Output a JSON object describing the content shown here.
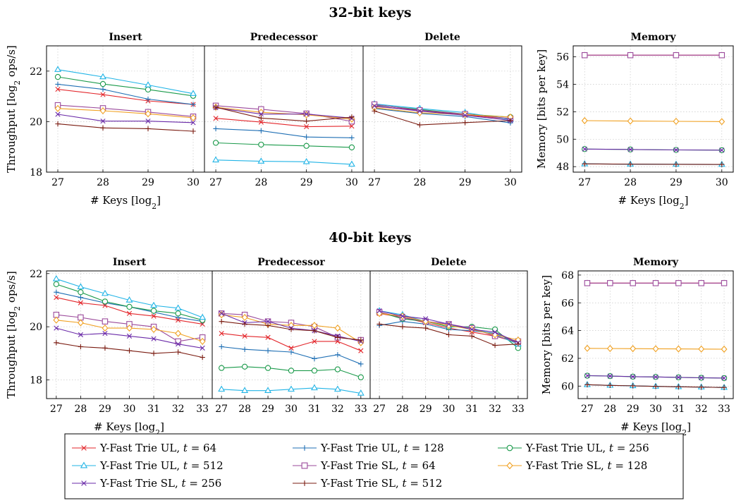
{
  "figure": {
    "sections": [
      {
        "title": "32-bit keys"
      },
      {
        "title": "40-bit keys"
      }
    ],
    "legend": {
      "items": [
        {
          "label": "Y-Fast Trie UL, t = 64",
          "color": "#e3262b",
          "marker": "x"
        },
        {
          "label": "Y-Fast Trie UL, t = 128",
          "color": "#1f6fb4",
          "marker": "plus"
        },
        {
          "label": "Y-Fast Trie UL, t = 256",
          "color": "#1a9a4a",
          "marker": "circle"
        },
        {
          "label": "Y-Fast Trie UL, t = 512",
          "color": "#21b4e6",
          "marker": "triangle"
        },
        {
          "label": "Y-Fast Trie SL, t = 64",
          "color": "#9b4a9b",
          "marker": "square"
        },
        {
          "label": "Y-Fast Trie SL, t = 128",
          "color": "#f0a020",
          "marker": "diamond"
        },
        {
          "label": "Y-Fast Trie SL, t = 256",
          "color": "#6a2aa8",
          "marker": "x"
        },
        {
          "label": "Y-Fast Trie SL, t = 512",
          "color": "#7a1b10",
          "marker": "plus"
        }
      ]
    }
  },
  "chart_data": [
    {
      "type": "line",
      "section": "32-bit keys",
      "title": "Insert",
      "xlabel": "# Keys [log2]",
      "ylabel": "Throughput [log2 ops/s]",
      "x": [
        27,
        28,
        29,
        30
      ],
      "xlim": [
        26.75,
        30.25
      ],
      "ylim": [
        18,
        23
      ],
      "yticks": [
        18,
        20,
        22
      ],
      "grid": true,
      "series": [
        {
          "name": "Y-Fast Trie UL, t = 64",
          "values": [
            21.28,
            21.07,
            20.82,
            20.68
          ]
        },
        {
          "name": "Y-Fast Trie UL, t = 128",
          "values": [
            21.48,
            21.28,
            20.89,
            20.68
          ]
        },
        {
          "name": "Y-Fast Trie UL, t = 256",
          "values": [
            21.77,
            21.49,
            21.27,
            21.02
          ]
        },
        {
          "name": "Y-Fast Trie UL, t = 512",
          "values": [
            22.06,
            21.77,
            21.45,
            21.11
          ]
        },
        {
          "name": "Y-Fast Trie SL, t = 64",
          "values": [
            20.65,
            20.53,
            20.38,
            20.2
          ]
        },
        {
          "name": "Y-Fast Trie SL, t = 128",
          "values": [
            20.52,
            20.43,
            20.31,
            20.15
          ]
        },
        {
          "name": "Y-Fast Trie SL, t = 256",
          "values": [
            20.29,
            20.02,
            20.02,
            19.96
          ]
        },
        {
          "name": "Y-Fast Trie SL, t = 512",
          "values": [
            19.91,
            19.75,
            19.72,
            19.62
          ]
        }
      ]
    },
    {
      "type": "line",
      "section": "32-bit keys",
      "title": "Predecessor",
      "xlabel": "",
      "ylabel": "",
      "x": [
        27,
        28,
        29,
        30
      ],
      "xlim": [
        26.75,
        30.25
      ],
      "ylim": [
        18,
        23
      ],
      "grid": true,
      "series": [
        {
          "name": "Y-Fast Trie UL, t = 64",
          "values": [
            20.13,
            19.98,
            19.8,
            19.82
          ]
        },
        {
          "name": "Y-Fast Trie UL, t = 128",
          "values": [
            19.72,
            19.64,
            19.39,
            19.36
          ]
        },
        {
          "name": "Y-Fast Trie UL, t = 256",
          "values": [
            19.16,
            19.09,
            19.04,
            18.98
          ]
        },
        {
          "name": "Y-Fast Trie UL, t = 512",
          "values": [
            18.48,
            18.43,
            18.41,
            18.31
          ]
        },
        {
          "name": "Y-Fast Trie SL, t = 64",
          "values": [
            20.63,
            20.49,
            20.32,
            20.01
          ]
        },
        {
          "name": "Y-Fast Trie SL, t = 128",
          "values": [
            20.57,
            20.37,
            20.27,
            20.1
          ]
        },
        {
          "name": "Y-Fast Trie SL, t = 256",
          "values": [
            20.55,
            20.3,
            20.3,
            20.14
          ]
        },
        {
          "name": "Y-Fast Trie SL, t = 512",
          "values": [
            20.57,
            20.14,
            20.02,
            20.18
          ]
        }
      ]
    },
    {
      "type": "line",
      "section": "32-bit keys",
      "title": "Delete",
      "xlabel": "",
      "ylabel": "",
      "x": [
        27,
        28,
        29,
        30
      ],
      "xlim": [
        26.75,
        30.25
      ],
      "ylim": [
        18,
        23
      ],
      "grid": true,
      "series": [
        {
          "name": "Y-Fast Trie UL, t = 64",
          "values": [
            20.6,
            20.45,
            20.27,
            20.1
          ]
        },
        {
          "name": "Y-Fast Trie UL, t = 128",
          "values": [
            20.52,
            20.32,
            20.2,
            19.95
          ]
        },
        {
          "name": "Y-Fast Trie UL, t = 256",
          "values": [
            20.66,
            20.48,
            20.3,
            20.18
          ]
        },
        {
          "name": "Y-Fast Trie UL, t = 512",
          "values": [
            20.7,
            20.52,
            20.36,
            20.08
          ]
        },
        {
          "name": "Y-Fast Trie SL, t = 64",
          "values": [
            20.68,
            20.45,
            20.3,
            20.12
          ]
        },
        {
          "name": "Y-Fast Trie SL, t = 128",
          "values": [
            20.55,
            20.35,
            20.28,
            20.18
          ]
        },
        {
          "name": "Y-Fast Trie SL, t = 256",
          "values": [
            20.62,
            20.42,
            20.25,
            20.05
          ]
        },
        {
          "name": "Y-Fast Trie SL, t = 512",
          "values": [
            20.42,
            19.87,
            19.96,
            20.04
          ]
        }
      ]
    },
    {
      "type": "line",
      "section": "32-bit keys",
      "title": "Memory",
      "xlabel": "# Keys [log2]",
      "ylabel": "Memory [bits per key]",
      "x": [
        27,
        28,
        29,
        30
      ],
      "xlim": [
        26.75,
        30.25
      ],
      "ylim": [
        47.6,
        56.8
      ],
      "yticks": [
        48,
        50,
        52,
        54,
        56
      ],
      "grid": true,
      "series": [
        {
          "name": "Y-Fast Trie UL, t = 64",
          "values": [
            56.12,
            56.12,
            56.12,
            56.12
          ]
        },
        {
          "name": "Y-Fast Trie UL, t = 128",
          "values": [
            48.2,
            48.18,
            48.17,
            48.16
          ]
        },
        {
          "name": "Y-Fast Trie UL, t = 256",
          "values": [
            49.28,
            49.25,
            49.22,
            49.2
          ]
        },
        {
          "name": "Y-Fast Trie UL, t = 512",
          "values": [
            48.2,
            48.18,
            48.17,
            48.16
          ]
        },
        {
          "name": "Y-Fast Trie SL, t = 64",
          "values": [
            56.12,
            56.12,
            56.12,
            56.12
          ]
        },
        {
          "name": "Y-Fast Trie SL, t = 128",
          "values": [
            51.35,
            51.32,
            51.3,
            51.28
          ]
        },
        {
          "name": "Y-Fast Trie SL, t = 256",
          "values": [
            49.28,
            49.25,
            49.22,
            49.2
          ]
        },
        {
          "name": "Y-Fast Trie SL, t = 512",
          "values": [
            48.2,
            48.18,
            48.17,
            48.16
          ]
        }
      ]
    },
    {
      "type": "line",
      "section": "40-bit keys",
      "title": "Insert",
      "xlabel": "# Keys [log2]",
      "ylabel": "Throughput [log2 ops/s]",
      "x": [
        27,
        28,
        29,
        30,
        31,
        32,
        33
      ],
      "xlim": [
        26.6,
        33.4
      ],
      "ylim": [
        17.3,
        22.1
      ],
      "yticks": [
        18,
        20,
        22
      ],
      "grid": true,
      "series": [
        {
          "name": "Y-Fast Trie UL, t = 64",
          "values": [
            21.1,
            20.9,
            20.8,
            20.5,
            20.4,
            20.25,
            20.1
          ]
        },
        {
          "name": "Y-Fast Trie UL, t = 128",
          "values": [
            21.3,
            21.1,
            20.9,
            20.75,
            20.55,
            20.35,
            20.2
          ]
        },
        {
          "name": "Y-Fast Trie UL, t = 256",
          "values": [
            21.6,
            21.3,
            20.95,
            20.75,
            20.6,
            20.5,
            20.25
          ]
        },
        {
          "name": "Y-Fast Trie UL, t = 512",
          "values": [
            21.8,
            21.5,
            21.25,
            21.0,
            20.8,
            20.7,
            20.35
          ]
        },
        {
          "name": "Y-Fast Trie SL, t = 64",
          "values": [
            20.45,
            20.35,
            20.2,
            20.1,
            20.0,
            19.45,
            19.6
          ]
        },
        {
          "name": "Y-Fast Trie SL, t = 128",
          "values": [
            20.25,
            20.15,
            19.95,
            19.95,
            19.9,
            19.75,
            19.45
          ]
        },
        {
          "name": "Y-Fast Trie SL, t = 256",
          "values": [
            19.95,
            19.7,
            19.75,
            19.65,
            19.55,
            19.35,
            19.2
          ]
        },
        {
          "name": "Y-Fast Trie SL, t = 512",
          "values": [
            19.4,
            19.25,
            19.2,
            19.1,
            19.0,
            19.05,
            18.85
          ]
        }
      ]
    },
    {
      "type": "line",
      "section": "40-bit keys",
      "title": "Predecessor",
      "xlabel": "",
      "ylabel": "",
      "x": [
        27,
        28,
        29,
        30,
        31,
        32,
        33
      ],
      "xlim": [
        26.6,
        33.4
      ],
      "ylim": [
        17.3,
        22.1
      ],
      "grid": true,
      "series": [
        {
          "name": "Y-Fast Trie UL, t = 64",
          "values": [
            19.75,
            19.65,
            19.6,
            19.2,
            19.45,
            19.45,
            19.1
          ]
        },
        {
          "name": "Y-Fast Trie UL, t = 128",
          "values": [
            19.25,
            19.15,
            19.1,
            19.05,
            18.8,
            18.95,
            18.6
          ]
        },
        {
          "name": "Y-Fast Trie UL, t = 256",
          "values": [
            18.45,
            18.5,
            18.45,
            18.35,
            18.35,
            18.4,
            18.1
          ]
        },
        {
          "name": "Y-Fast Trie UL, t = 512",
          "values": [
            17.65,
            17.6,
            17.6,
            17.65,
            17.7,
            17.65,
            17.5
          ]
        },
        {
          "name": "Y-Fast Trie SL, t = 64",
          "values": [
            20.5,
            20.45,
            20.2,
            20.15,
            20.0,
            19.6,
            19.5
          ]
        },
        {
          "name": "Y-Fast Trie SL, t = 128",
          "values": [
            20.45,
            20.35,
            20.1,
            20.05,
            20.05,
            19.95,
            19.4
          ]
        },
        {
          "name": "Y-Fast Trie SL, t = 256",
          "values": [
            20.5,
            20.15,
            20.2,
            19.95,
            19.85,
            19.65,
            19.45
          ]
        },
        {
          "name": "Y-Fast Trie SL, t = 512",
          "values": [
            20.2,
            20.1,
            20.05,
            19.9,
            19.85,
            19.6,
            19.5
          ]
        }
      ]
    },
    {
      "type": "line",
      "section": "40-bit keys",
      "title": "Delete",
      "xlabel": "",
      "ylabel": "",
      "x": [
        27,
        28,
        29,
        30,
        31,
        32,
        33
      ],
      "xlim": [
        26.6,
        33.4
      ],
      "ylim": [
        17.3,
        22.1
      ],
      "grid": true,
      "series": [
        {
          "name": "Y-Fast Trie UL, t = 64",
          "values": [
            20.5,
            20.35,
            20.15,
            19.95,
            19.8,
            19.65,
            19.4
          ]
        },
        {
          "name": "Y-Fast Trie UL, t = 128",
          "values": [
            20.05,
            20.2,
            20.1,
            19.9,
            19.85,
            19.75,
            19.4
          ]
        },
        {
          "name": "Y-Fast Trie UL, t = 256",
          "values": [
            20.55,
            20.3,
            20.2,
            20.0,
            20.0,
            19.9,
            19.2
          ]
        },
        {
          "name": "Y-Fast Trie UL, t = 512",
          "values": [
            20.6,
            20.45,
            20.2,
            20.05,
            19.95,
            19.7,
            19.35
          ]
        },
        {
          "name": "Y-Fast Trie SL, t = 64",
          "values": [
            20.55,
            20.35,
            20.2,
            20.1,
            19.95,
            19.65,
            19.45
          ]
        },
        {
          "name": "Y-Fast Trie SL, t = 128",
          "values": [
            20.5,
            20.4,
            20.2,
            20.05,
            19.9,
            19.7,
            19.5
          ]
        },
        {
          "name": "Y-Fast Trie SL, t = 256",
          "values": [
            20.6,
            20.4,
            20.3,
            20.1,
            19.9,
            19.8,
            19.4
          ]
        },
        {
          "name": "Y-Fast Trie SL, t = 512",
          "values": [
            20.1,
            20.0,
            19.95,
            19.7,
            19.65,
            19.3,
            19.35
          ]
        }
      ]
    },
    {
      "type": "line",
      "section": "40-bit keys",
      "title": "Memory",
      "xlabel": "# Keys [log2]",
      "ylabel": "Memory [bits per key]",
      "x": [
        27,
        28,
        29,
        30,
        31,
        32,
        33
      ],
      "xlim": [
        26.6,
        33.4
      ],
      "ylim": [
        59.1,
        68.3
      ],
      "yticks": [
        60,
        62,
        64,
        66,
        68
      ],
      "grid": true,
      "series": [
        {
          "name": "Y-Fast Trie UL, t = 64",
          "values": [
            67.42,
            67.42,
            67.42,
            67.42,
            67.42,
            67.42,
            67.42
          ]
        },
        {
          "name": "Y-Fast Trie UL, t = 128",
          "values": [
            60.1,
            60.05,
            60.02,
            59.98,
            59.95,
            59.93,
            59.9
          ]
        },
        {
          "name": "Y-Fast Trie UL, t = 256",
          "values": [
            60.75,
            60.72,
            60.68,
            60.66,
            60.63,
            60.6,
            60.58
          ]
        },
        {
          "name": "Y-Fast Trie UL, t = 512",
          "values": [
            60.1,
            60.05,
            60.02,
            59.98,
            59.95,
            59.93,
            59.9
          ]
        },
        {
          "name": "Y-Fast Trie SL, t = 64",
          "values": [
            67.42,
            67.42,
            67.42,
            67.42,
            67.42,
            67.42,
            67.42
          ]
        },
        {
          "name": "Y-Fast Trie SL, t = 128",
          "values": [
            62.72,
            62.71,
            62.7,
            62.69,
            62.68,
            62.67,
            62.66
          ]
        },
        {
          "name": "Y-Fast Trie SL, t = 256",
          "values": [
            60.75,
            60.72,
            60.68,
            60.66,
            60.63,
            60.6,
            60.58
          ]
        },
        {
          "name": "Y-Fast Trie SL, t = 512",
          "values": [
            60.1,
            60.05,
            60.02,
            59.98,
            59.95,
            59.93,
            59.9
          ]
        }
      ]
    }
  ]
}
